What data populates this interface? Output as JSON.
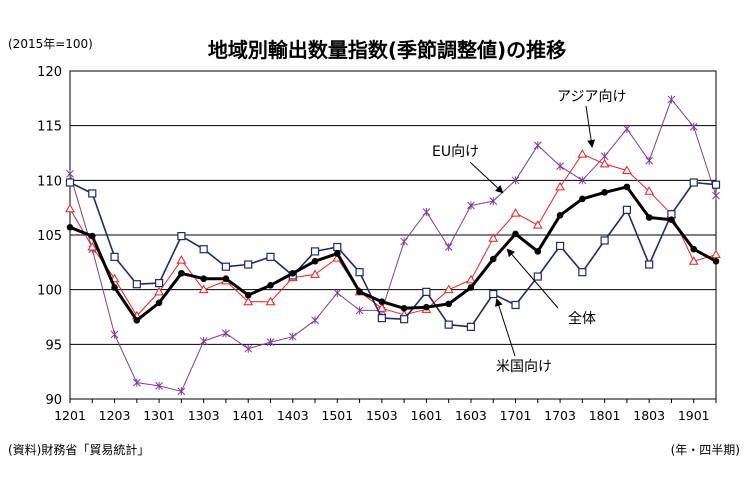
{
  "unit_note": "(2015年=100)",
  "source_note": "(資料)財務省「貿易統計」",
  "period_note": "(年・四半期)",
  "chart_data": {
    "type": "line",
    "title": "地域別輸出数量指数(季節調整値)の推移",
    "xlabel": "",
    "ylabel": "",
    "ylim": [
      90,
      120
    ],
    "yticks": [
      90,
      95,
      100,
      105,
      110,
      115,
      120
    ],
    "grid": true,
    "x": [
      "1201",
      "1202",
      "1203",
      "1204",
      "1301",
      "1302",
      "1303",
      "1304",
      "1401",
      "1402",
      "1403",
      "1404",
      "1501",
      "1502",
      "1503",
      "1504",
      "1601",
      "1602",
      "1603",
      "1604",
      "1701",
      "1702",
      "1703",
      "1704",
      "1801",
      "1802",
      "1803",
      "1804",
      "1901",
      "1902"
    ],
    "xtick_labels": [
      "1201",
      "1203",
      "1301",
      "1303",
      "1401",
      "1403",
      "1501",
      "1503",
      "1601",
      "1603",
      "1701",
      "1703",
      "1801",
      "1803",
      "1901"
    ],
    "series": [
      {
        "name": "全体",
        "color": "#000000",
        "marker": "dot",
        "width": 3,
        "values": [
          105.7,
          104.9,
          100.2,
          97.2,
          98.8,
          101.5,
          101.0,
          101.0,
          99.5,
          100.4,
          101.5,
          102.6,
          103.3,
          99.8,
          98.9,
          98.3,
          98.4,
          98.7,
          100.2,
          102.8,
          105.1,
          103.5,
          106.8,
          108.3,
          108.9,
          109.4,
          106.6,
          106.4,
          103.7,
          102.6
        ]
      },
      {
        "name": "米国向け",
        "color": "#1f2a6e",
        "marker": "square",
        "width": 1.6,
        "values": [
          109.8,
          108.8,
          103.0,
          100.5,
          100.6,
          104.9,
          103.7,
          102.1,
          102.3,
          103.0,
          101.3,
          103.5,
          103.9,
          101.6,
          97.4,
          97.3,
          99.8,
          96.8,
          96.6,
          99.6,
          98.6,
          101.2,
          104.0,
          101.6,
          104.5,
          107.3,
          102.3,
          106.9,
          109.8,
          109.6
        ]
      },
      {
        "name": "アジア向け",
        "color": "#e8211c",
        "marker": "triangle",
        "width": 1,
        "values": [
          107.4,
          103.9,
          101.0,
          97.6,
          99.8,
          102.7,
          100.0,
          100.8,
          98.9,
          98.9,
          101.1,
          101.4,
          102.9,
          99.8,
          98.3,
          97.7,
          98.2,
          100.0,
          100.9,
          104.7,
          107.0,
          105.9,
          109.4,
          112.4,
          111.5,
          110.9,
          109.0,
          106.9,
          102.6,
          103.2
        ]
      },
      {
        "name": "EU向け",
        "color": "#7b3f9e",
        "marker": "x",
        "width": 1,
        "values": [
          110.6,
          103.7,
          95.9,
          91.5,
          91.2,
          90.7,
          95.3,
          96.0,
          94.6,
          95.2,
          95.7,
          97.2,
          99.7,
          98.1,
          98.1,
          104.4,
          107.1,
          103.9,
          107.7,
          108.1,
          110.0,
          113.2,
          111.3,
          110.0,
          112.2,
          114.7,
          111.8,
          117.4,
          114.9,
          108.6
        ]
      }
    ],
    "annotations": [
      "アジア向け",
      "EU向け",
      "全体",
      "米国向け"
    ]
  }
}
